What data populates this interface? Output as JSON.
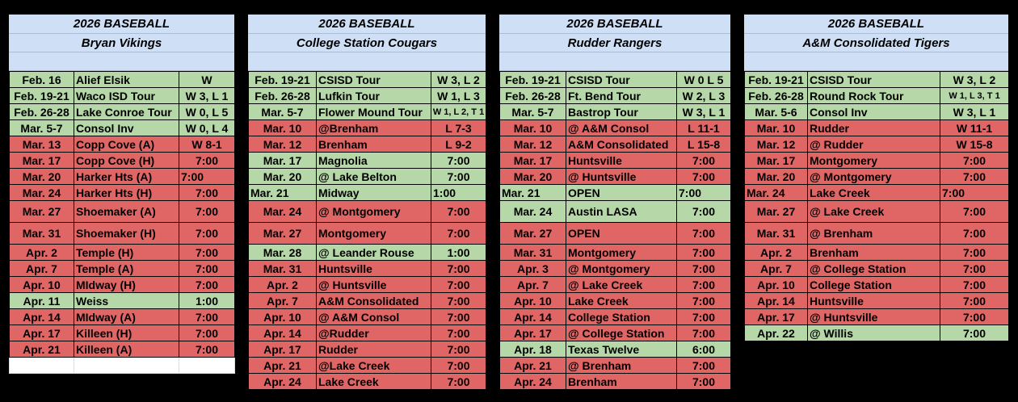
{
  "teams": [
    {
      "title": "2026 BASEBALL",
      "team": "Bryan Vikings",
      "games": [
        {
          "date": "Feb. 16",
          "opponent": "Alief Elsik",
          "result": "W",
          "color": "g"
        },
        {
          "date": "Feb. 19-21",
          "opponent": "Waco ISD Tour",
          "result": "W 3, L 1",
          "color": "g"
        },
        {
          "date": "Feb. 26-28",
          "opponent": "Lake Conroe Tour",
          "result": "W 0, L 5",
          "color": "g"
        },
        {
          "date": "Mar. 5-7",
          "opponent": "Consol Inv",
          "result": "W 0, L 4",
          "color": "g"
        },
        {
          "date": "Mar. 13",
          "opponent": "Copp Cove (A)",
          "result": "W 8-1",
          "color": "r"
        },
        {
          "date": "Mar. 17",
          "opponent": "Copp Cove (H)",
          "result": "7:00",
          "color": "r"
        },
        {
          "date": "Mar. 20",
          "opponent": "Harker Hts (A)",
          "result": "7:00",
          "color": "r",
          "rleft": true
        },
        {
          "date": "Mar. 24",
          "opponent": "Harker Hts (H)",
          "result": "7:00",
          "color": "r"
        },
        {
          "date": "Mar. 27",
          "opponent": "Shoemaker (A)",
          "result": "7:00",
          "color": "r",
          "tall": true
        },
        {
          "date": "Mar. 31",
          "opponent": "Shoemaker (H)",
          "result": "7:00",
          "color": "r",
          "tall": true
        },
        {
          "date": "Apr. 2",
          "opponent": "Temple (H)",
          "result": "7:00",
          "color": "r"
        },
        {
          "date": "Apr. 7",
          "opponent": "Temple (A)",
          "result": "7:00",
          "color": "r"
        },
        {
          "date": "Apr. 10",
          "opponent": "MIdway (H)",
          "result": "7:00",
          "color": "r"
        },
        {
          "date": "Apr. 11",
          "opponent": "Weiss",
          "result": "1:00",
          "color": "g"
        },
        {
          "date": "Apr. 14",
          "opponent": "MIdway (A)",
          "result": "7:00",
          "color": "r"
        },
        {
          "date": "Apr. 17",
          "opponent": "Killeen (H)",
          "result": "7:00",
          "color": "r"
        },
        {
          "date": "Apr. 21",
          "opponent": "Killeen (A)",
          "result": "7:00",
          "color": "r"
        },
        {
          "date": "",
          "opponent": "",
          "result": "",
          "color": "w"
        }
      ]
    },
    {
      "title": "2026 BASEBALL",
      "team": "College Station Cougars",
      "games": [
        {
          "date": "Feb. 19-21",
          "opponent": "CSISD Tour",
          "result": "W 3, L 2",
          "color": "g"
        },
        {
          "date": "Feb. 26-28",
          "opponent": "Lufkin Tour",
          "result": "W 1, L 3",
          "color": "g"
        },
        {
          "date": "Mar. 5-7",
          "opponent": "Flower Mound Tour",
          "result": "W 1, L 2, T 1",
          "color": "g",
          "small": true
        },
        {
          "date": "Mar. 10",
          "opponent": "@Brenham",
          "result": "L 7-3",
          "color": "r"
        },
        {
          "date": "Mar. 12",
          "opponent": "Brenham",
          "result": "L 9-2",
          "color": "r"
        },
        {
          "date": "Mar. 17",
          "opponent": " Magnolia",
          "result": "7:00",
          "color": "g"
        },
        {
          "date": "Mar. 20",
          "opponent": "@ Lake Belton",
          "result": "7:00",
          "color": "g"
        },
        {
          "date": "Mar. 21",
          "opponent": "Midway",
          "result": "1:00",
          "color": "g",
          "rleft": true,
          "dleft": true
        },
        {
          "date": "Mar. 24",
          "opponent": "@ Montgomery",
          "result": "7:00",
          "color": "r",
          "tall": true
        },
        {
          "date": "Mar. 27",
          "opponent": "Montgomery",
          "result": "7:00",
          "color": "r",
          "tall": true
        },
        {
          "date": "Mar. 28",
          "opponent": "@ Leander Rouse",
          "result": "1:00",
          "color": "g"
        },
        {
          "date": "Mar. 31",
          "opponent": "Huntsville",
          "result": "7:00",
          "color": "r"
        },
        {
          "date": "Apr. 2",
          "opponent": "@ Huntsville",
          "result": "7:00",
          "color": "r"
        },
        {
          "date": "Apr. 7",
          "opponent": "A&M Consolidated",
          "result": "7:00",
          "color": "r"
        },
        {
          "date": "Apr. 10",
          "opponent": "@ A&M Consol",
          "result": "7:00",
          "color": "r"
        },
        {
          "date": "Apr. 14",
          "opponent": "@Rudder",
          "result": "7:00",
          "color": "r"
        },
        {
          "date": "Apr. 17",
          "opponent": " Rudder",
          "result": "7:00",
          "color": "r"
        },
        {
          "date": "Apr. 21",
          "opponent": "@Lake Creek",
          "result": "7:00",
          "color": "r"
        },
        {
          "date": "Apr. 24",
          "opponent": "Lake Creek",
          "result": "7:00",
          "color": "r"
        }
      ]
    },
    {
      "title": "2026 BASEBALL",
      "team": "Rudder Rangers",
      "games": [
        {
          "date": "Feb. 19-21",
          "opponent": "CSISD Tour",
          "result": "W 0 L 5",
          "color": "g"
        },
        {
          "date": "Feb. 26-28",
          "opponent": "Ft. Bend Tour",
          "result": "W 2, L 3",
          "color": "g"
        },
        {
          "date": "Mar. 5-7",
          "opponent": "Bastrop Tour",
          "result": "W 3, L 1",
          "color": "g"
        },
        {
          "date": "Mar. 10",
          "opponent": "@ A&M Consol",
          "result": "L 11-1",
          "color": "r"
        },
        {
          "date": "Mar. 12",
          "opponent": "A&M Consolidated",
          "result": "L 15-8",
          "color": "r"
        },
        {
          "date": "Mar. 17",
          "opponent": "Huntsville",
          "result": "7:00",
          "color": "r"
        },
        {
          "date": "Mar. 20",
          "opponent": "@ Huntsville",
          "result": "7:00",
          "color": "r"
        },
        {
          "date": "Mar. 21",
          "opponent": "OPEN",
          "result": "7:00",
          "color": "g",
          "rleft": true,
          "dleft": true
        },
        {
          "date": "Mar. 24",
          "opponent": "Austin LASA",
          "result": "7:00",
          "color": "g",
          "tall": true
        },
        {
          "date": "Mar. 27",
          "opponent": "OPEN",
          "result": "7:00",
          "color": "r",
          "tall": true
        },
        {
          "date": "Mar. 31",
          "opponent": "Montgomery",
          "result": "7:00",
          "color": "r"
        },
        {
          "date": "Apr. 3",
          "opponent": "@ Montgomery",
          "result": "7:00",
          "color": "r"
        },
        {
          "date": "Apr. 7",
          "opponent": "@ Lake Creek",
          "result": "7:00",
          "color": "r"
        },
        {
          "date": "Apr. 10",
          "opponent": "Lake Creek",
          "result": "7:00",
          "color": "r"
        },
        {
          "date": "Apr. 14",
          "opponent": "College Station",
          "result": "7:00",
          "color": "r"
        },
        {
          "date": "Apr. 17",
          "opponent": "@ College Station",
          "result": "7:00",
          "color": "r"
        },
        {
          "date": "Apr. 18",
          "opponent": "Texas Twelve",
          "result": "6:00",
          "color": "g"
        },
        {
          "date": "Apr. 21",
          "opponent": "@ Brenham",
          "result": "7:00",
          "color": "r"
        },
        {
          "date": "Apr. 24",
          "opponent": "Brenham",
          "result": "7:00",
          "color": "r"
        }
      ]
    },
    {
      "title": "2026 BASEBALL",
      "team": "A&M Consolidated Tigers",
      "games": [
        {
          "date": "Feb. 19-21",
          "opponent": "CSISD Tour",
          "result": "W 3, L 2",
          "color": "g"
        },
        {
          "date": "Feb. 26-28",
          "opponent": "Round Rock Tour",
          "result": "W 1, L 3, T 1",
          "color": "g",
          "small": true
        },
        {
          "date": "Mar. 5-6",
          "opponent": "Consol Inv",
          "result": "W 3, L 1",
          "color": "g"
        },
        {
          "date": "Mar. 10",
          "opponent": "Rudder",
          "result": "W 11-1",
          "color": "r"
        },
        {
          "date": "Mar. 12",
          "opponent": "@ Rudder",
          "result": "W 15-8",
          "color": "r"
        },
        {
          "date": "Mar. 17",
          "opponent": "Montgomery",
          "result": "7:00",
          "color": "r"
        },
        {
          "date": "Mar. 20",
          "opponent": "@ Montgomery",
          "result": "7:00",
          "color": "r"
        },
        {
          "date": "Mar. 24",
          "opponent": "Lake Creek",
          "result": "7:00",
          "color": "r",
          "rleft": true,
          "dleft": true
        },
        {
          "date": "Mar. 27",
          "opponent": "@ Lake Creek",
          "result": "7:00",
          "color": "r",
          "tall": true
        },
        {
          "date": "Mar. 31",
          "opponent": "@ Brenham",
          "result": "7:00",
          "color": "r",
          "tall": true
        },
        {
          "date": "Apr. 2",
          "opponent": "Brenham",
          "result": "7:00",
          "color": "r"
        },
        {
          "date": "Apr. 7",
          "opponent": "@ College Station",
          "result": "7:00",
          "color": "r"
        },
        {
          "date": "Apr. 10",
          "opponent": "College Station",
          "result": "7:00",
          "color": "r"
        },
        {
          "date": "Apr. 14",
          "opponent": "Huntsville",
          "result": "7:00",
          "color": "r"
        },
        {
          "date": "Apr. 17",
          "opponent": "@ Huntsville",
          "result": "7:00",
          "color": "r"
        },
        {
          "date": "Apr. 22",
          "opponent": "@ Willis",
          "result": "7:00",
          "color": "g"
        }
      ]
    }
  ]
}
